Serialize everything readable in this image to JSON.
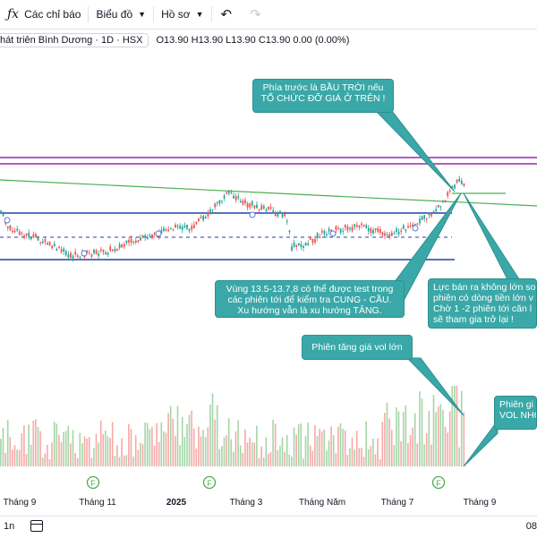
{
  "toolbar": {
    "indicators_label": "Các chỉ báo",
    "chart_label": "Biểu đồ",
    "profile_label": "Hồ sơ",
    "undo_icon": "undo-icon",
    "redo_icon": "redo-icon"
  },
  "legend": {
    "symbol_title": "hát triên Bình Dương · 1D · HSX",
    "ohlc": "O13.90 H13.90 L13.90 C13.90 0.00 (0.00%)"
  },
  "chart_data": {
    "type": "candlestick",
    "x_ticks": [
      "Tháng 9",
      "Tháng 11",
      "2025",
      "Tháng 3",
      "Tháng Năm",
      "Tháng 7",
      "Tháng 9"
    ],
    "earnings_marker": "F",
    "annotations": [
      "Phía trước là BẦU TRỜI nếu TỔ CHỨC ĐỠ GIÁ Ở TRÊN !",
      "Vùng 13.5-13.7,8 có thể được test trong các phiên tới để kiểm tra CUNG - CẦU. Xu hướng vẫn là xu hướng TĂNG.",
      "Lực bán ra không lớn so phiên có dòng tiền lớn v Chờ 1 -2 phiên tới căn l sẽ tham gia trở lại !",
      "Phiên tăng giá vol lớn",
      "Phiên gi VOL NHỎ"
    ]
  },
  "callouts": {
    "c1_line1": "Phía trước là BẦU TRỜI nếu",
    "c1_line2": "TỔ CHỨC ĐỠ GIÁ Ở TRÊN !",
    "c2_line1": "Vùng 13.5-13.7,8 có thể được test trong",
    "c2_line2": "các phiên tới để kiểm tra CUNG - CẦU.",
    "c2_line3": "Xu hướng vẫn là xu hướng TĂNG.",
    "c3_line1": "Lực bán ra không lớn so",
    "c3_line2": "phiên có dòng tiền lớn v",
    "c3_line3": "Chờ 1 -2 phiên tới căn l",
    "c3_line4": "sẽ tham gia trở lại !",
    "c4_line1": "Phiên tăng giá vol lớn",
    "c5_line1": "Phiên gi",
    "c5_line2": "VOL NHỎ"
  },
  "bottom": {
    "range_label": "1n",
    "calendar_icon": "calendar-icon",
    "clock_partial": "08"
  },
  "colors": {
    "up": "#26a69a",
    "down": "#ef5350",
    "vol_up": "#a5d6a7",
    "vol_down": "#f7a9a7",
    "support_line": "#1e40af",
    "resistance_line": "#9c27b0",
    "trend_line": "#4caf50",
    "callout_bg": "#3aa8a8"
  }
}
